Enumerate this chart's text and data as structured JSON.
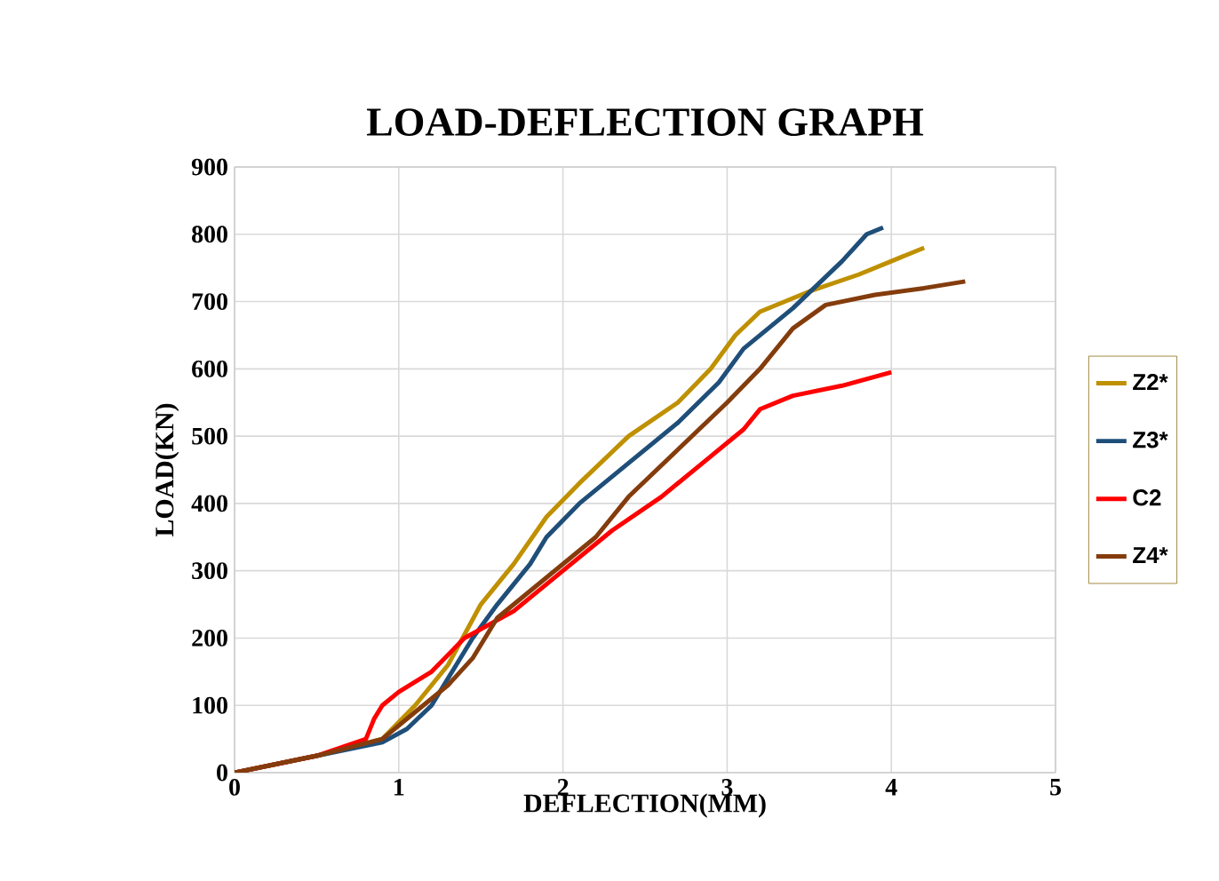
{
  "chart_data": {
    "type": "line",
    "title": "LOAD-DEFLECTION  GRAPH",
    "xlabel": "DEFLECTION(MM)",
    "ylabel": "LOAD(KN)",
    "xlim": [
      0,
      5
    ],
    "xticks": [
      0,
      1,
      2,
      3,
      4,
      5
    ],
    "ylim": [
      0,
      900
    ],
    "yticks": [
      0,
      100,
      200,
      300,
      400,
      500,
      600,
      700,
      800,
      900
    ],
    "grid": true,
    "legend": "right",
    "marker": "none",
    "line_style": "solid",
    "series": [
      {
        "name": "Z2*",
        "color": "#bf9000",
        "x": [
          0,
          0.5,
          0.9,
          1.1,
          1.3,
          1.5,
          1.7,
          1.9,
          2.1,
          2.4,
          2.7,
          2.9,
          3.05,
          3.2,
          3.5,
          3.8,
          4.0,
          4.2
        ],
        "values": [
          0,
          25,
          50,
          100,
          160,
          250,
          310,
          380,
          430,
          500,
          550,
          600,
          650,
          685,
          715,
          740,
          760,
          780
        ]
      },
      {
        "name": "Z3*",
        "color": "#1f4e79",
        "x": [
          0,
          0.5,
          0.9,
          1.05,
          1.2,
          1.3,
          1.45,
          1.6,
          1.8,
          1.9,
          2.1,
          2.4,
          2.7,
          2.95,
          3.1,
          3.4,
          3.7,
          3.85,
          3.95
        ],
        "values": [
          0,
          25,
          45,
          65,
          100,
          140,
          200,
          250,
          310,
          350,
          400,
          460,
          520,
          580,
          630,
          690,
          760,
          800,
          810
        ]
      },
      {
        "name": "C2",
        "color": "#ff0000",
        "x": [
          0,
          0.5,
          0.8,
          0.85,
          0.9,
          1.0,
          1.2,
          1.4,
          1.7,
          2.0,
          2.3,
          2.6,
          2.9,
          3.1,
          3.2,
          3.4,
          3.7,
          4.0
        ],
        "values": [
          0,
          25,
          50,
          80,
          100,
          120,
          150,
          200,
          240,
          300,
          360,
          410,
          470,
          510,
          540,
          560,
          575,
          595
        ]
      },
      {
        "name": "Z4*",
        "color": "#843c0c",
        "x": [
          0,
          0.5,
          0.9,
          1.1,
          1.3,
          1.45,
          1.6,
          1.9,
          2.2,
          2.4,
          2.7,
          3.0,
          3.2,
          3.4,
          3.6,
          3.9,
          4.2,
          4.45
        ],
        "values": [
          0,
          25,
          50,
          90,
          130,
          170,
          230,
          290,
          350,
          410,
          480,
          550,
          600,
          660,
          695,
          710,
          720,
          730
        ]
      }
    ]
  }
}
